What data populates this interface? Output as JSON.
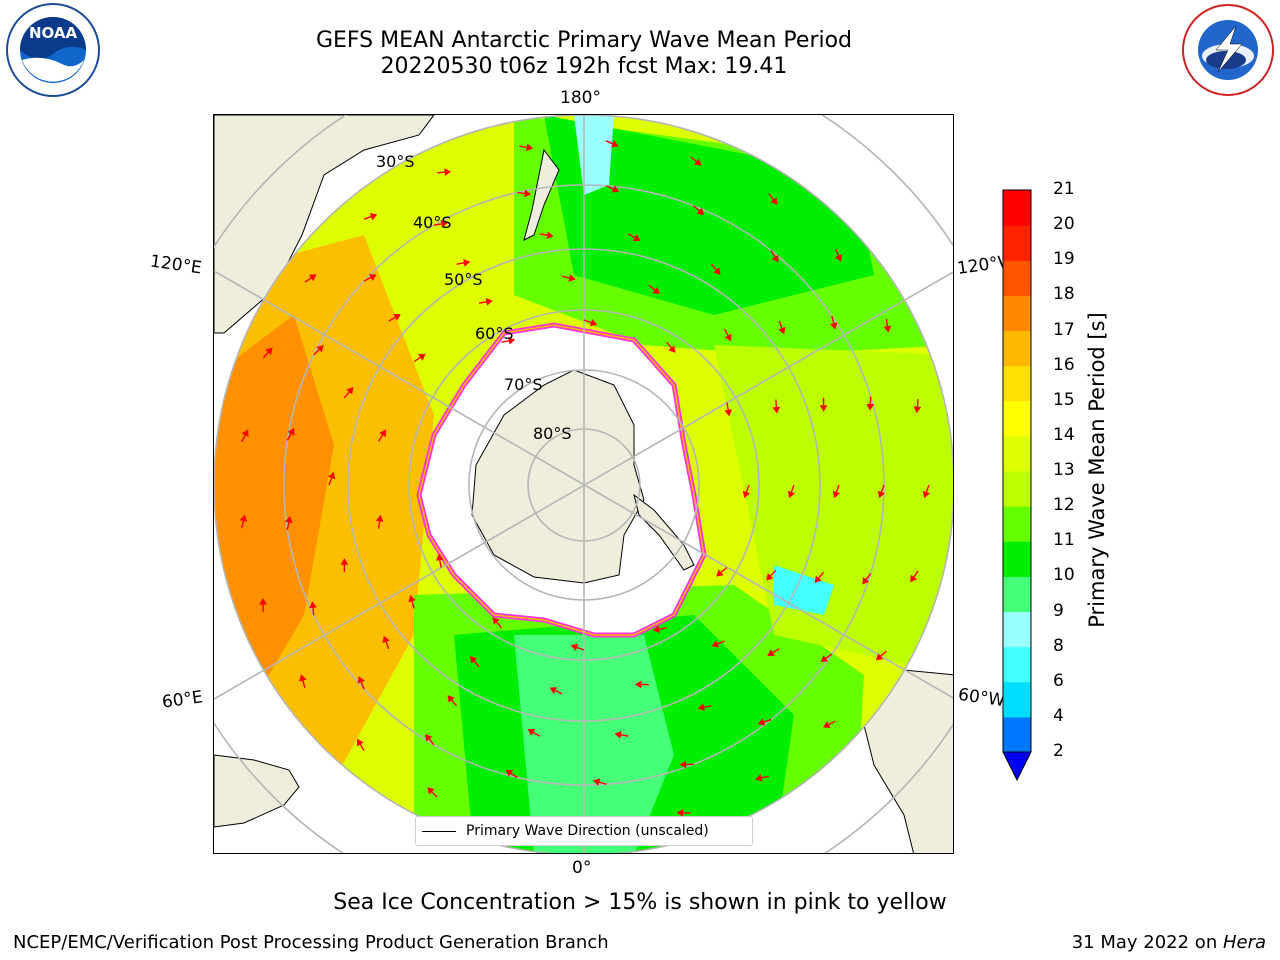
{
  "title": {
    "line1": "GEFS MEAN Antarctic Primary Wave Mean Period",
    "line2": "20220530 t06z 192h fcst   Max: 19.41"
  },
  "logos": {
    "noaa_text": "NOAA",
    "noaa_ring": "NATIONAL OCEANIC AND ATMOSPHERIC ADMINISTRATION · U.S. DEPARTMENT OF COMMERCE",
    "nws_ring": "NATIONAL WEATHER SERVICE"
  },
  "map": {
    "longitude_labels": {
      "top": "180°",
      "bottom": "0°",
      "left_upper": "120°E",
      "left_lower": "60°E",
      "right_upper": "120°W",
      "right_lower": "60°W"
    },
    "latitude_labels": [
      "30°S",
      "40°S",
      "50°S",
      "60°S",
      "70°S",
      "80°S"
    ],
    "legend_label": "Primary Wave Direction (unscaled)",
    "land_color": "#efeedc",
    "arrow_color": "#ff0000"
  },
  "colorbar": {
    "title": "Primary Wave Mean Period [s]",
    "ticks": [
      "2",
      "4",
      "6",
      "8",
      "9",
      "10",
      "11",
      "12",
      "13",
      "14",
      "15",
      "16",
      "17",
      "18",
      "19",
      "20",
      "21"
    ],
    "colors": [
      "#0000ff",
      "#0077ff",
      "#00ddff",
      "#44ffff",
      "#99ffff",
      "#44ff77",
      "#00ee00",
      "#66ff00",
      "#bbff00",
      "#ddff00",
      "#ffff00",
      "#ffe000",
      "#ffb800",
      "#ff8800",
      "#ff5500",
      "#ff2200",
      "#ff0000"
    ]
  },
  "note": "Sea Ice Concentration > 15% is shown in pink to yellow",
  "footer": {
    "left": "NCEP/EMC/Verification Post Processing Product Generation Branch",
    "right_prefix": "31 May 2022 on ",
    "right_host": "Hera"
  }
}
